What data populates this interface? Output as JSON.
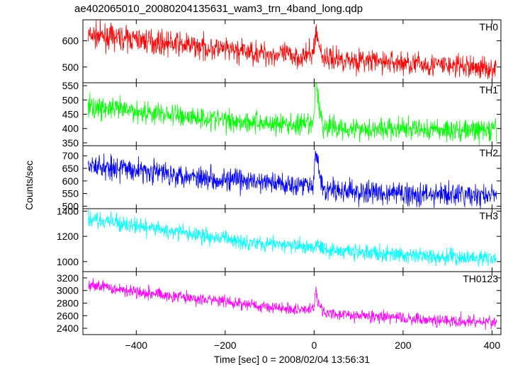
{
  "chart_data": {
    "title": "ae402065010_20080204135631_wam3_trn_4band_long.qdp",
    "ylabel": "Counts/sec",
    "xlabel": "Time [sec] 0 = 2008/02/04 13:56:31",
    "xlim": [
      -520,
      420
    ],
    "xticks": [
      -400,
      -200,
      0,
      200,
      400
    ],
    "panels": [
      {
        "type": "line",
        "name": "TH0",
        "color": "#ff0000",
        "ylim": [
          440,
          680
        ],
        "yticks": [
          500,
          600
        ],
        "x": [
          -500,
          -400,
          -300,
          -200,
          -100,
          -20,
          0,
          5,
          20,
          100,
          200,
          300,
          400
        ],
        "y": [
          620,
          605,
          585,
          565,
          550,
          540,
          555,
          620,
          535,
          525,
          515,
          505,
          495
        ],
        "noise": 32,
        "spikes": [
          {
            "x": 3,
            "y": 640
          }
        ]
      },
      {
        "type": "line",
        "name": "TH1",
        "color": "#00ff00",
        "ylim": [
          340,
          560
        ],
        "yticks": [
          350,
          400,
          450,
          500,
          550
        ],
        "x": [
          -500,
          -400,
          -300,
          -200,
          -100,
          -20,
          0,
          5,
          20,
          100,
          200,
          300,
          400
        ],
        "y": [
          475,
          460,
          445,
          430,
          418,
          410,
          420,
          540,
          405,
          400,
          398,
          395,
          393
        ],
        "noise": 28,
        "spikes": [
          {
            "x": 3,
            "y": 560
          }
        ]
      },
      {
        "type": "line",
        "name": "TH2",
        "color": "#0000ff",
        "ylim": [
          490,
          740
        ],
        "yticks": [
          500,
          550,
          600,
          650,
          700
        ],
        "x": [
          -500,
          -400,
          -300,
          -200,
          -100,
          -20,
          0,
          5,
          20,
          100,
          200,
          300,
          400
        ],
        "y": [
          660,
          645,
          625,
          605,
          592,
          585,
          600,
          690,
          565,
          555,
          550,
          545,
          540
        ],
        "noise": 33,
        "spikes": [
          {
            "x": 3,
            "y": 720
          }
        ]
      },
      {
        "type": "line",
        "name": "TH3",
        "color": "#00ffff",
        "ylim": [
          920,
          1420
        ],
        "yticks": [
          1000,
          1200,
          1400
        ],
        "x": [
          -500,
          -400,
          -300,
          -200,
          -100,
          -20,
          0,
          5,
          20,
          100,
          200,
          300,
          400
        ],
        "y": [
          1340,
          1280,
          1230,
          1180,
          1140,
          1115,
          1120,
          1160,
          1100,
          1075,
          1050,
          1035,
          1025
        ],
        "noise": 45,
        "spikes": []
      },
      {
        "type": "line",
        "name": "TH0123",
        "color": "#ff00ff",
        "ylim": [
          2300,
          3300
        ],
        "yticks": [
          2400,
          2600,
          2800,
          3000,
          3200
        ],
        "x": [
          -500,
          -400,
          -300,
          -200,
          -100,
          -20,
          0,
          5,
          20,
          100,
          200,
          300,
          400
        ],
        "y": [
          3080,
          2990,
          2900,
          2820,
          2740,
          2690,
          2720,
          2900,
          2640,
          2600,
          2560,
          2520,
          2500
        ],
        "noise": 70,
        "spikes": [
          {
            "x": 3,
            "y": 3050
          }
        ]
      }
    ]
  }
}
